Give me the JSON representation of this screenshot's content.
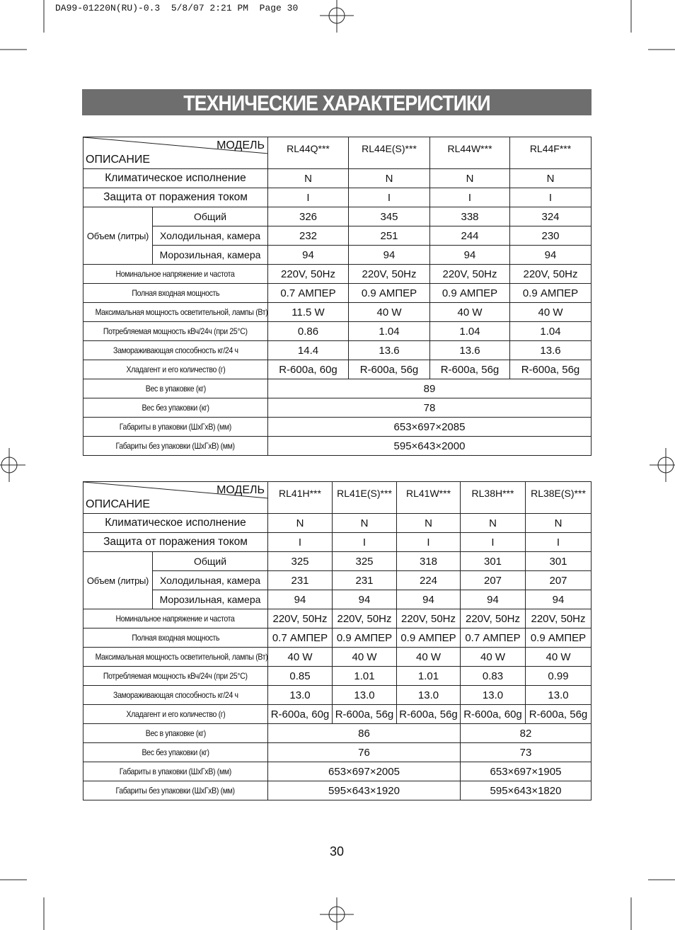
{
  "header": {
    "print_info": "DA99-01220N(RU)-0.3  5/8/07 2:21 PM  Page 30"
  },
  "title": "ТЕХНИЧЕСКИЕ ХАРАКТЕРИСТИКИ",
  "tables": [
    {
      "description_label": "ОПИСАНИЕ",
      "model_label": "МОДЕЛЬ",
      "models": [
        "RL44Q***",
        "RL44E(S)***",
        "RL44W***",
        "RL44F***"
      ],
      "rows": [
        {
          "label": "Климатическое исполнение",
          "values": [
            "N",
            "N",
            "N",
            "N"
          ]
        },
        {
          "label": "Защита от поражения током",
          "values": [
            "I",
            "I",
            "I",
            "I"
          ]
        },
        {
          "group": "Объем (литры)",
          "items": [
            {
              "label": "Общий",
              "values": [
                "326",
                "345",
                "338",
                "324"
              ]
            },
            {
              "label": "Холодильная, камера",
              "values": [
                "232",
                "251",
                "244",
                "230"
              ]
            },
            {
              "label": "Морозильная, камера",
              "values": [
                "94",
                "94",
                "94",
                "94"
              ]
            }
          ]
        },
        {
          "label": "Номинальное напряжение и частота",
          "values": [
            "220V, 50Hz",
            "220V, 50Hz",
            "220V, 50Hz",
            "220V, 50Hz"
          ]
        },
        {
          "label": "Полная входная мощность",
          "values": [
            "0.7 АМПЕР",
            "0.9 АМПЕР",
            "0.9 АМПЕР",
            "0.9 АМПЕР"
          ]
        },
        {
          "label": "Максимальная мощность осветительной, лампы (Вт)",
          "values": [
            "11.5 W",
            "40 W",
            "40 W",
            "40 W"
          ]
        },
        {
          "label": "Потребляемая мощность кВч/24ч (при 25°C)",
          "values": [
            "0.86",
            "1.04",
            "1.04",
            "1.04"
          ]
        },
        {
          "label": "Замораживающая способность кг/24 ч",
          "values": [
            "14.4",
            "13.6",
            "13.6",
            "13.6"
          ]
        },
        {
          "label": "Хладагент и его количество (г)",
          "values": [
            "R-600a, 60g",
            "R-600a, 56g",
            "R-600a, 56g",
            "R-600a, 56g"
          ]
        },
        {
          "label": "Вес в упаковке (кг)",
          "values": [
            "89"
          ]
        },
        {
          "label": "Вес без упаковки (кг)",
          "values": [
            "78"
          ]
        },
        {
          "label": "Габариты в упаковки (ШхГхВ) (мм)",
          "values": [
            "653×697×2085"
          ]
        },
        {
          "label": "Габариты без упаковки (ШхГхВ) (мм)",
          "values": [
            "595×643×2000"
          ]
        }
      ]
    },
    {
      "description_label": "ОПИСАНИЕ",
      "model_label": "МОДЕЛЬ",
      "models": [
        "RL41H***",
        "RL41E(S)***",
        "RL41W***",
        "RL38H***",
        "RL38E(S)***"
      ],
      "rows": [
        {
          "label": "Климатическое исполнение",
          "values": [
            "N",
            "N",
            "N",
            "N",
            "N"
          ]
        },
        {
          "label": "Защита от поражения током",
          "values": [
            "I",
            "I",
            "I",
            "I",
            "I"
          ]
        },
        {
          "group": "Объем (литры)",
          "items": [
            {
              "label": "Общий",
              "values": [
                "325",
                "325",
                "318",
                "301",
                "301"
              ]
            },
            {
              "label": "Холодильная, камера",
              "values": [
                "231",
                "231",
                "224",
                "207",
                "207"
              ]
            },
            {
              "label": "Морозильная, камера",
              "values": [
                "94",
                "94",
                "94",
                "94",
                "94"
              ]
            }
          ]
        },
        {
          "label": "Номинальное напряжение и частота",
          "values": [
            "220V, 50Hz",
            "220V, 50Hz",
            "220V, 50Hz",
            "220V, 50Hz",
            "220V, 50Hz"
          ]
        },
        {
          "label": "Полная входная мощность",
          "values": [
            "0.7 АМПЕР",
            "0.9 АМПЕР",
            "0.9 АМПЕР",
            "0.7 АМПЕР",
            "0.9 АМПЕР"
          ]
        },
        {
          "label": "Максимальная мощность осветительной, лампы (Вт)",
          "values": [
            "40 W",
            "40 W",
            "40 W",
            "40 W",
            "40 W"
          ]
        },
        {
          "label": "Потребляемая мощность кВч/24ч (при 25°C)",
          "values": [
            "0.85",
            "1.01",
            "1.01",
            "0.83",
            "0.99"
          ]
        },
        {
          "label": "Замораживающая способность кг/24 ч",
          "values": [
            "13.0",
            "13.0",
            "13.0",
            "13.0",
            "13.0"
          ]
        },
        {
          "label": "Хладагент и его количество (г)",
          "values": [
            "R-600a, 60g",
            "R-600a, 56g",
            "R-600a, 56g",
            "R-600a, 60g",
            "R-600a, 56g"
          ]
        },
        {
          "label": "Вес в упаковке (кг)",
          "values": [
            "86",
            "82"
          ]
        },
        {
          "label": "Вес без упаковки (кг)",
          "values": [
            "76",
            "73"
          ]
        },
        {
          "label": "Габариты в упаковки (ШхГхВ) (мм)",
          "values": [
            "653×697×2005",
            "653×697×1905"
          ]
        },
        {
          "label": "Габариты без упаковки (ШхГхВ) (мм)",
          "values": [
            "595×643×1920",
            "595×643×1820"
          ]
        }
      ]
    }
  ],
  "page_number": "30"
}
